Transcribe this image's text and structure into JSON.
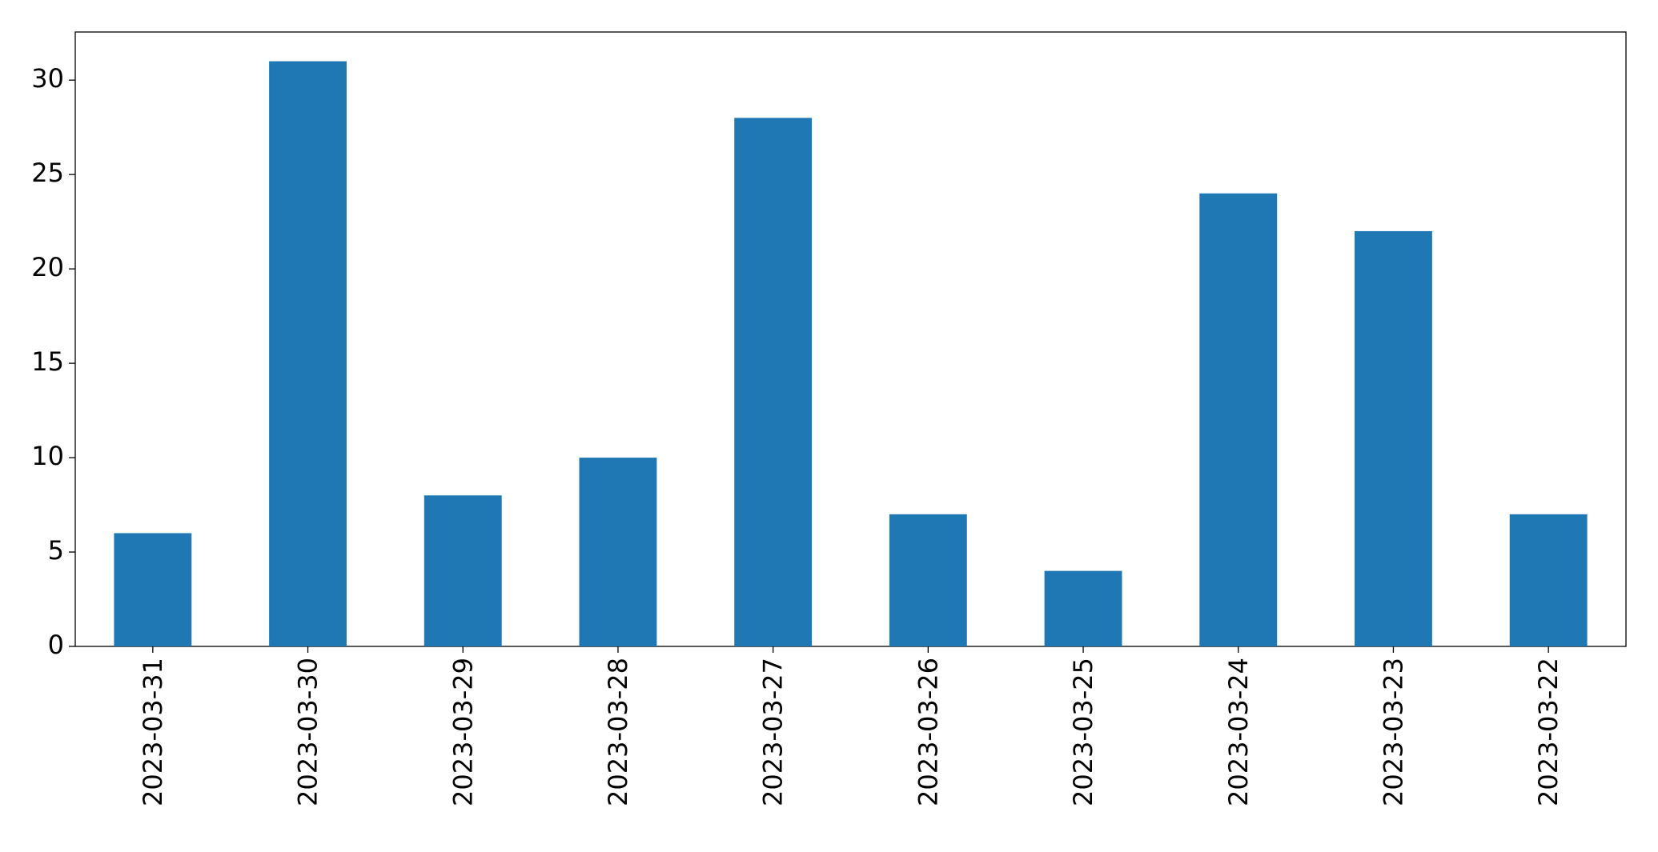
{
  "chart_data": {
    "type": "bar",
    "categories": [
      "2023-03-31",
      "2023-03-30",
      "2023-03-29",
      "2023-03-28",
      "2023-03-27",
      "2023-03-26",
      "2023-03-25",
      "2023-03-24",
      "2023-03-23",
      "2023-03-22"
    ],
    "values": [
      6,
      31,
      8,
      10,
      28,
      7,
      4,
      24,
      22,
      7
    ],
    "color": "#1f77b4",
    "ylim": [
      0,
      32.55
    ],
    "yticks": [
      0,
      5,
      10,
      15,
      20,
      25,
      30
    ],
    "grid": false
  }
}
